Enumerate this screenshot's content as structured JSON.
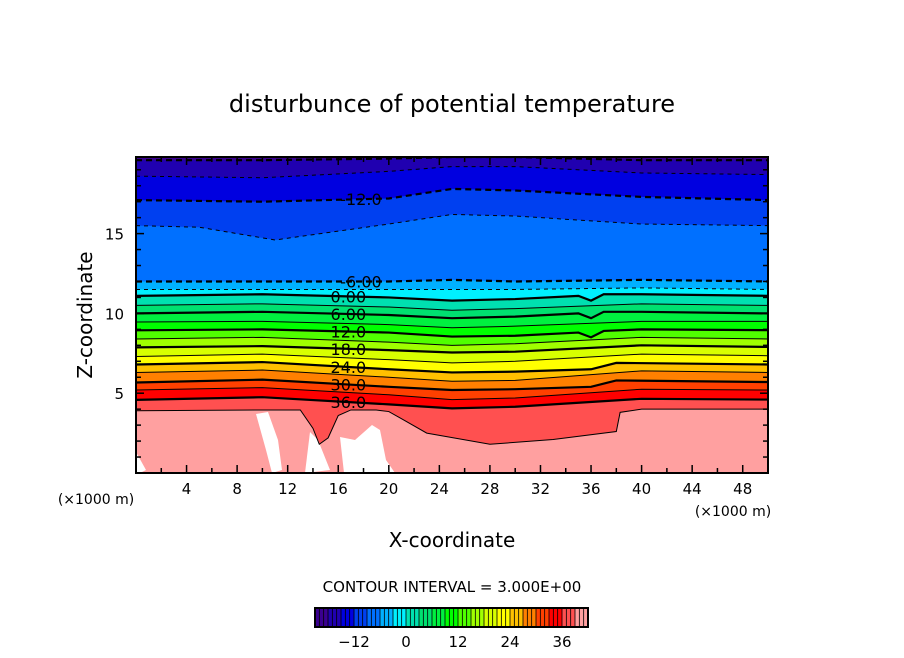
{
  "chart_data": {
    "type": "contour",
    "title": "disturbunce of potential temperature",
    "xlabel": "X-coordinate",
    "ylabel": "Z-coordinate",
    "x_unit_label": "(×1000 m)",
    "y_unit_label": "(×1000 m)",
    "xlim": [
      0,
      50
    ],
    "ylim": [
      0,
      19.8
    ],
    "x_ticks": [
      4,
      8,
      12,
      16,
      20,
      24,
      28,
      32,
      36,
      40,
      44,
      48
    ],
    "y_ticks": [
      5,
      10,
      15
    ],
    "contour_interval_text": "CONTOUR INTERVAL = 3.000E+00",
    "contour_interval": 3,
    "colorbar": {
      "range": [
        -21,
        42
      ],
      "ticks": [
        -12,
        0,
        12,
        24,
        36
      ],
      "band_colors": [
        "#3a0090",
        "#2000b0",
        "#0000e0",
        "#0040f0",
        "#0070ff",
        "#00b0ff",
        "#00f0ff",
        "#00e0b0",
        "#00e070",
        "#00f040",
        "#00ff00",
        "#50ff00",
        "#a0ff00",
        "#d8ff00",
        "#ffff00",
        "#ffc000",
        "#ff8000",
        "#ff4000",
        "#ff0000",
        "#ff5050",
        "#ffa0a0"
      ]
    },
    "contours": [
      {
        "level": -18,
        "label": null,
        "points": [
          [
            0,
            19.6
          ],
          [
            10,
            19.6
          ],
          [
            20,
            19.7
          ],
          [
            25,
            19.8
          ],
          [
            30,
            19.8
          ],
          [
            40,
            19.6
          ],
          [
            50,
            19.6
          ]
        ]
      },
      {
        "level": -15,
        "label": null,
        "points": [
          [
            0,
            18.6
          ],
          [
            10,
            18.5
          ],
          [
            20,
            18.9
          ],
          [
            25,
            19.2
          ],
          [
            30,
            19.2
          ],
          [
            40,
            18.8
          ],
          [
            50,
            18.7
          ]
        ]
      },
      {
        "level": -12,
        "label": "-12.0",
        "label_x": 17.8,
        "points": [
          [
            0,
            17.1
          ],
          [
            10,
            17.0
          ],
          [
            20,
            17.2
          ],
          [
            25,
            17.8
          ],
          [
            30,
            17.7
          ],
          [
            40,
            17.3
          ],
          [
            50,
            17.1
          ]
        ]
      },
      {
        "level": -9,
        "label": null,
        "points": [
          [
            0,
            15.5
          ],
          [
            5,
            15.4
          ],
          [
            11,
            14.6
          ],
          [
            20,
            15.6
          ],
          [
            25,
            16.2
          ],
          [
            30,
            16.1
          ],
          [
            40,
            15.6
          ],
          [
            50,
            15.5
          ]
        ]
      },
      {
        "level": -6,
        "label": "-6.00",
        "label_x": 17.8,
        "points": [
          [
            0,
            12.0
          ],
          [
            10,
            12.0
          ],
          [
            20,
            12.0
          ],
          [
            25,
            12.1
          ],
          [
            30,
            12.0
          ],
          [
            40,
            12.1
          ],
          [
            50,
            12.0
          ]
        ]
      },
      {
        "level": -3,
        "label": null,
        "points": [
          [
            0,
            11.5
          ],
          [
            10,
            11.5
          ],
          [
            20,
            11.5
          ],
          [
            25,
            11.5
          ],
          [
            30,
            11.5
          ],
          [
            40,
            11.6
          ],
          [
            50,
            11.5
          ]
        ]
      },
      {
        "level": 0,
        "label": "0.00",
        "label_x": 16.8,
        "points": [
          [
            0,
            11.1
          ],
          [
            10,
            11.2
          ],
          [
            20,
            11.0
          ],
          [
            25,
            10.8
          ],
          [
            30,
            10.9
          ],
          [
            35,
            11.1
          ],
          [
            36,
            10.8
          ],
          [
            37,
            11.2
          ],
          [
            40,
            11.2
          ],
          [
            50,
            11.1
          ]
        ]
      },
      {
        "level": 3,
        "label": null,
        "points": [
          [
            0,
            10.5
          ],
          [
            10,
            10.6
          ],
          [
            20,
            10.4
          ],
          [
            25,
            10.2
          ],
          [
            30,
            10.3
          ],
          [
            40,
            10.6
          ],
          [
            50,
            10.5
          ]
        ]
      },
      {
        "level": 6,
        "label": "6.00",
        "label_x": 16.8,
        "points": [
          [
            0,
            10.0
          ],
          [
            10,
            10.1
          ],
          [
            20,
            9.9
          ],
          [
            25,
            9.7
          ],
          [
            30,
            9.8
          ],
          [
            35,
            10.0
          ],
          [
            36,
            9.7
          ],
          [
            37,
            10.1
          ],
          [
            40,
            10.1
          ],
          [
            50,
            10.0
          ]
        ]
      },
      {
        "level": 9,
        "label": null,
        "points": [
          [
            0,
            9.46
          ],
          [
            10,
            9.5
          ],
          [
            20,
            9.3
          ],
          [
            25,
            9.1
          ],
          [
            30,
            9.2
          ],
          [
            40,
            9.5
          ],
          [
            50,
            9.5
          ]
        ]
      },
      {
        "level": 12,
        "label": "12.0",
        "label_x": 16.8,
        "points": [
          [
            0,
            8.94
          ],
          [
            10,
            9.0
          ],
          [
            20,
            8.8
          ],
          [
            25,
            8.55
          ],
          [
            30,
            8.6
          ],
          [
            35,
            8.8
          ],
          [
            36,
            8.5
          ],
          [
            37,
            8.9
          ],
          [
            40,
            9.0
          ],
          [
            50,
            8.95
          ]
        ]
      },
      {
        "level": 15,
        "label": null,
        "points": [
          [
            0,
            8.4
          ],
          [
            10,
            8.5
          ],
          [
            20,
            8.2
          ],
          [
            25,
            8.0
          ],
          [
            30,
            8.1
          ],
          [
            40,
            8.5
          ],
          [
            50,
            8.4
          ]
        ]
      },
      {
        "level": 18,
        "label": "18.0",
        "label_x": 16.8,
        "points": [
          [
            0,
            7.87
          ],
          [
            10,
            7.95
          ],
          [
            20,
            7.7
          ],
          [
            25,
            7.55
          ],
          [
            30,
            7.6
          ],
          [
            40,
            8.0
          ],
          [
            50,
            7.9
          ]
        ]
      },
      {
        "level": 21,
        "label": null,
        "points": [
          [
            0,
            7.3
          ],
          [
            10,
            7.45
          ],
          [
            20,
            7.1
          ],
          [
            25,
            6.9
          ],
          [
            30,
            7.0
          ],
          [
            40,
            7.45
          ],
          [
            50,
            7.35
          ]
        ]
      },
      {
        "level": 24,
        "label": "24.0",
        "label_x": 16.8,
        "points": [
          [
            0,
            6.8
          ],
          [
            10,
            6.95
          ],
          [
            20,
            6.5
          ],
          [
            25,
            6.3
          ],
          [
            30,
            6.35
          ],
          [
            36,
            6.5
          ],
          [
            38,
            6.9
          ],
          [
            50,
            6.8
          ]
        ]
      },
      {
        "level": 27,
        "label": null,
        "points": [
          [
            0,
            6.3
          ],
          [
            10,
            6.45
          ],
          [
            20,
            6.0
          ],
          [
            25,
            5.75
          ],
          [
            30,
            5.8
          ],
          [
            40,
            6.4
          ],
          [
            50,
            6.3
          ]
        ]
      },
      {
        "level": 30,
        "label": "30.0",
        "label_x": 16.8,
        "points": [
          [
            0,
            5.67
          ],
          [
            10,
            5.85
          ],
          [
            20,
            5.4
          ],
          [
            25,
            5.2
          ],
          [
            30,
            5.25
          ],
          [
            36,
            5.4
          ],
          [
            38,
            5.8
          ],
          [
            50,
            5.7
          ]
        ]
      },
      {
        "level": 33,
        "label": null,
        "points": [
          [
            0,
            5.2
          ],
          [
            10,
            5.35
          ],
          [
            20,
            4.9
          ],
          [
            25,
            4.6
          ],
          [
            30,
            4.7
          ],
          [
            40,
            5.25
          ],
          [
            50,
            5.2
          ]
        ]
      },
      {
        "level": 36,
        "label": "36.0",
        "label_x": 16.8,
        "points": [
          [
            0,
            4.58
          ],
          [
            10,
            4.75
          ],
          [
            20,
            4.3
          ],
          [
            25,
            4.05
          ],
          [
            30,
            4.15
          ],
          [
            40,
            4.65
          ],
          [
            50,
            4.6
          ]
        ]
      },
      {
        "level": 39,
        "label": null,
        "points": [
          [
            0,
            3.9
          ],
          [
            10,
            3.95
          ],
          [
            13,
            3.95
          ],
          [
            14,
            2.8
          ],
          [
            14.5,
            1.8
          ],
          [
            15.2,
            2.2
          ],
          [
            16,
            3.6
          ],
          [
            17,
            3.95
          ],
          [
            19,
            3.95
          ],
          [
            20,
            3.85
          ],
          [
            21,
            3.4
          ],
          [
            23,
            2.5
          ],
          [
            28,
            1.8
          ],
          [
            33,
            2.1
          ],
          [
            38,
            2.6
          ],
          [
            38.3,
            3.8
          ],
          [
            40,
            4.0
          ],
          [
            50,
            4.0
          ]
        ]
      }
    ]
  }
}
